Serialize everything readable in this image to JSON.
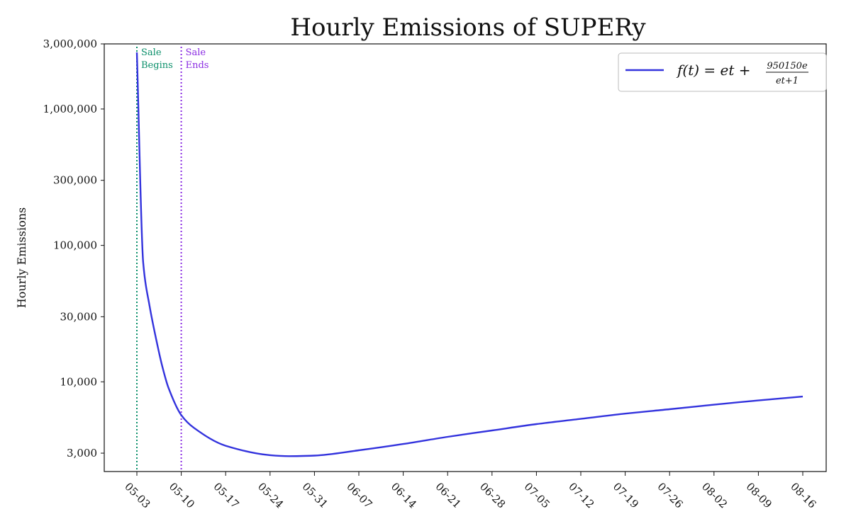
{
  "chart_data": {
    "type": "line",
    "title": "Hourly Emissions of SUPERy",
    "xlabel": "",
    "ylabel": "Hourly Emissions",
    "y_scale": "log",
    "ylim": [
      2200,
      3000000
    ],
    "y_ticks": [
      3000,
      10000,
      30000,
      100000,
      300000,
      1000000,
      3000000
    ],
    "y_tick_labels": [
      "3,000",
      "10,000",
      "30,000",
      "100,000",
      "300,000",
      "1,000,000",
      "3,000,000"
    ],
    "x_tick_labels": [
      "05-03",
      "05-10",
      "05-17",
      "05-24",
      "05-31",
      "06-07",
      "06-14",
      "06-21",
      "06-28",
      "07-05",
      "07-12",
      "07-19",
      "07-26",
      "08-02",
      "08-09",
      "08-16"
    ],
    "x_start": "05-03",
    "x_end": "08-16",
    "series": [
      {
        "name": "f(t) = et + 950150e / (et+1)",
        "color": "#3333dd",
        "x": [
          "05-03",
          "05-04",
          "05-05",
          "05-06",
          "05-07",
          "05-08",
          "05-10",
          "05-12",
          "05-17",
          "05-24",
          "05-27",
          "05-31",
          "06-07",
          "06-14",
          "06-21",
          "06-28",
          "07-05",
          "07-12",
          "07-19",
          "07-26",
          "08-02",
          "08-09",
          "08-16"
        ],
        "values": [
          2600000,
          75000,
          36000,
          21000,
          13000,
          9000,
          5700,
          4600,
          3400,
          2900,
          2850,
          2880,
          3150,
          3500,
          3950,
          4400,
          4900,
          5350,
          5850,
          6300,
          6800,
          7300,
          7800
        ]
      }
    ],
    "annotations": [
      {
        "x": "05-03",
        "label_line1": "Sale",
        "label_line2": "Begins",
        "color": "#0a8f6a"
      },
      {
        "x": "05-10",
        "label_line1": "Sale",
        "label_line2": "Ends",
        "color": "#8a2be2"
      }
    ],
    "legend": {
      "placement": "top-right",
      "prefix": "f(t) = et +",
      "numerator": "950150e",
      "denominator": "et+1"
    },
    "grid": false
  }
}
